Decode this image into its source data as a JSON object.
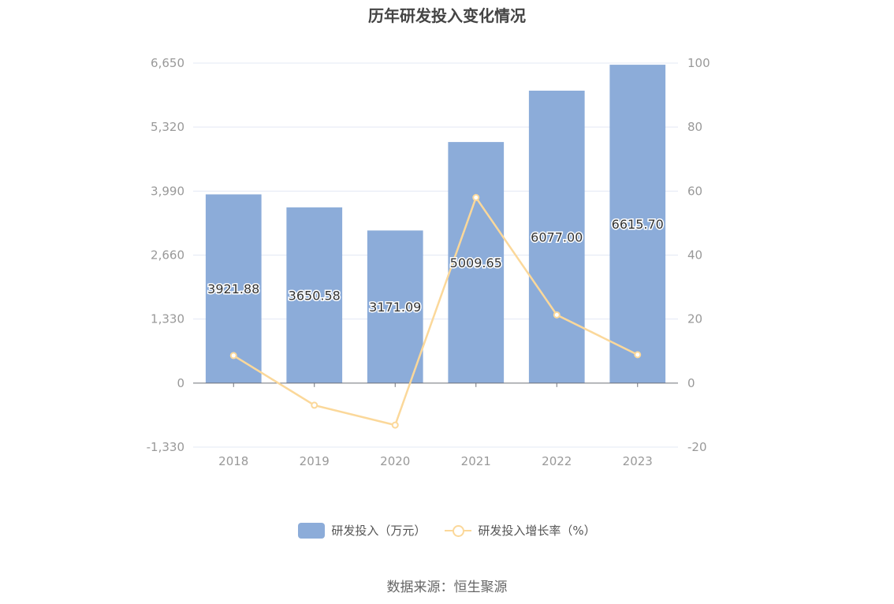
{
  "chart_data": {
    "type": "bar",
    "title": "历年研发投入变化情况",
    "categories": [
      "2018",
      "2019",
      "2020",
      "2021",
      "2022",
      "2023"
    ],
    "series": [
      {
        "name": "研发投入（万元）",
        "type": "bar",
        "axis": "left",
        "values": [
          3921.88,
          3650.58,
          3171.09,
          5009.65,
          6077.0,
          6615.7
        ],
        "labels": [
          "3921.88",
          "3650.58",
          "3171.09",
          "5009.65",
          "6077.00",
          "6615.70"
        ],
        "color": "#8cacd9"
      },
      {
        "name": "研发投入增长率（%）",
        "type": "line",
        "axis": "right",
        "values": [
          8.6,
          -6.92,
          -13.13,
          57.98,
          21.31,
          8.86
        ],
        "color": "#fbd89a"
      }
    ],
    "y_left": {
      "ylim": [
        -1330,
        6650
      ],
      "ticks": [
        -1330,
        0,
        1330,
        2660,
        3990,
        5320,
        6650
      ],
      "tick_labels": [
        "-1,330",
        "0",
        "1,330",
        "2,660",
        "3,990",
        "5,320",
        "6,650"
      ]
    },
    "y_right": {
      "ylim": [
        -20,
        100
      ],
      "ticks": [
        -20,
        0,
        20,
        40,
        60,
        80,
        100
      ],
      "tick_labels": [
        "-20",
        "0",
        "20",
        "40",
        "60",
        "80",
        "100"
      ]
    },
    "grid": true,
    "legend_position": "bottom"
  },
  "source": "数据来源：恒生聚源"
}
